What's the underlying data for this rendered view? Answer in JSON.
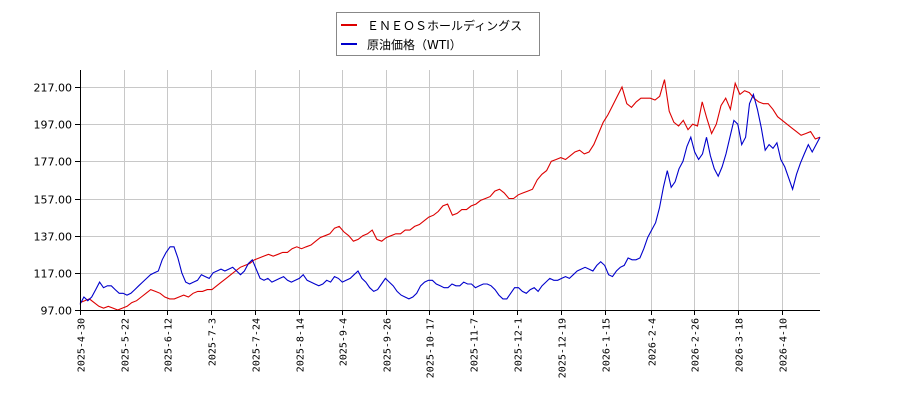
{
  "legend": {
    "items": [
      {
        "label": "ＥＮＥＯＳホールディングス",
        "color": "#dd0000"
      },
      {
        "label": "原油価格（WTI）",
        "color": "#0000cc"
      }
    ]
  },
  "chart_data": {
    "type": "line",
    "title": "",
    "xlabel": "",
    "ylabel": "",
    "ylim": [
      97,
      226
    ],
    "grid": true,
    "legend_position": "top-center",
    "y_ticks": [
      "97.00",
      "117.00",
      "137.00",
      "157.00",
      "177.00",
      "197.00",
      "217.00"
    ],
    "x_ticks": [
      "2025-4-30",
      "2025-5-22",
      "2025-6-12",
      "2025-7-3",
      "2025-7-24",
      "2025-8-14",
      "2025-9-4",
      "2025-9-26",
      "2025-10-17",
      "2025-11-7",
      "2025-12-1",
      "2025-12-19",
      "2026-1-15",
      "2026-2-4",
      "2026-2-26",
      "2026-3-18",
      "2026-4-10"
    ],
    "series": [
      {
        "name": "ＥＮＥＯＳホールディングス",
        "color": "#dd0000",
        "values": [
          101,
          102,
          103,
          101,
          99,
          98,
          99,
          98,
          97,
          98,
          99,
          101,
          102,
          104,
          106,
          108,
          107,
          106,
          104,
          103,
          103,
          104,
          105,
          104,
          106,
          107,
          107,
          108,
          108,
          110,
          112,
          114,
          116,
          118,
          120,
          121,
          122,
          124,
          125,
          126,
          127,
          126,
          127,
          128,
          128,
          130,
          131,
          130,
          131,
          132,
          134,
          136,
          137,
          138,
          141,
          142,
          139,
          137,
          134,
          135,
          137,
          138,
          140,
          135,
          134,
          136,
          137,
          138,
          138,
          140,
          140,
          142,
          143,
          145,
          147,
          148,
          150,
          153,
          154,
          148,
          149,
          151,
          151,
          153,
          154,
          156,
          157,
          158,
          161,
          162,
          160,
          157,
          157,
          159,
          160,
          161,
          162,
          167,
          170,
          172,
          177,
          178,
          179,
          178,
          180,
          182,
          183,
          181,
          182,
          186,
          192,
          198,
          202,
          207,
          212,
          217,
          208,
          206,
          209,
          211,
          211,
          211,
          210,
          212,
          221,
          204,
          198,
          196,
          199,
          194,
          197,
          196,
          209,
          200,
          192,
          197,
          207,
          211,
          205,
          219,
          213,
          215,
          214,
          211,
          209,
          208,
          208,
          205,
          201,
          199,
          197,
          195,
          193,
          191,
          192,
          193,
          189,
          190
        ]
      },
      {
        "name": "原油価格（WTI）",
        "color": "#0000cc",
        "values": [
          100,
          104,
          102,
          104,
          108,
          112,
          109,
          110,
          110,
          108,
          106,
          106,
          105,
          106,
          108,
          110,
          112,
          114,
          116,
          117,
          118,
          124,
          128,
          131,
          131,
          125,
          117,
          112,
          111,
          112,
          113,
          116,
          115,
          114,
          117,
          118,
          119,
          118,
          119,
          120,
          118,
          116,
          118,
          122,
          124,
          119,
          114,
          113,
          114,
          112,
          113,
          114,
          115,
          113,
          112,
          113,
          114,
          116,
          113,
          112,
          111,
          110,
          111,
          113,
          112,
          115,
          114,
          112,
          113,
          114,
          116,
          118,
          114,
          112,
          109,
          107,
          108,
          111,
          114,
          112,
          110,
          107,
          105,
          104,
          103,
          104,
          106,
          110,
          112,
          113,
          113,
          111,
          110,
          109,
          109,
          111,
          110,
          110,
          112,
          111,
          111,
          109,
          110,
          111,
          111,
          110,
          108,
          105,
          103,
          103,
          106,
          109,
          109,
          107,
          106,
          108,
          109,
          107,
          110,
          112,
          114,
          113,
          113,
          114,
          115,
          114,
          116,
          118,
          119,
          120,
          119,
          118,
          121,
          123,
          121,
          116,
          115,
          118,
          120,
          121,
          125,
          124,
          124,
          125,
          130,
          136,
          140,
          144,
          152,
          163,
          172,
          163,
          166,
          173,
          177,
          185,
          190,
          182,
          178,
          181,
          190,
          180,
          173,
          169,
          174,
          181,
          190,
          199,
          197,
          186,
          190,
          208,
          213,
          205,
          195,
          183,
          186,
          184,
          187,
          178,
          174,
          168,
          162,
          170,
          176,
          181,
          186,
          182,
          186,
          190
        ]
      }
    ]
  }
}
